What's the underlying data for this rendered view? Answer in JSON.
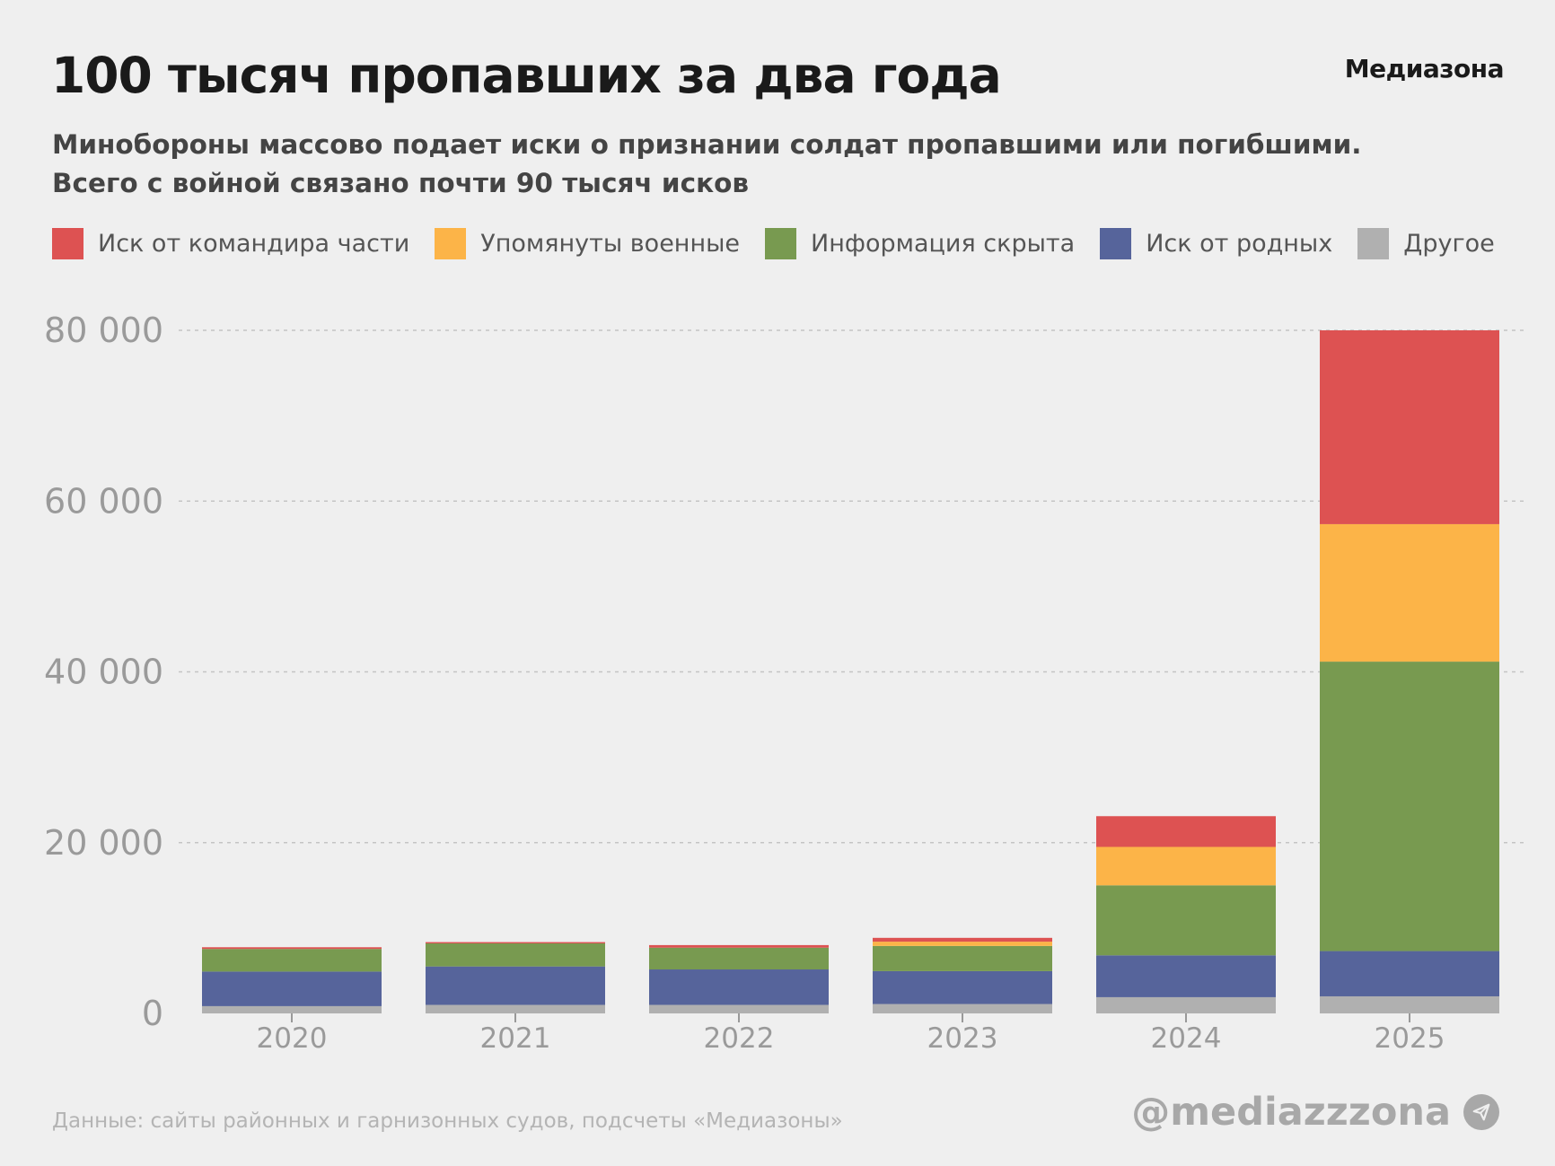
{
  "header": {
    "title": "100 тысяч пропавших за два года",
    "brand": "Медиазона",
    "subtitle_line1": "Минобороны массово подает иски о признании солдат пропавшими или погибшими.",
    "subtitle_line2": "Всего с войной связано почти 90 тысяч исков"
  },
  "footer": {
    "source": "Данные: сайты районных и гарнизонных судов, подсчеты «Медиазоны»",
    "handle": "@mediazzzona",
    "handle_icon": "telegram-icon"
  },
  "chart_data": {
    "type": "bar",
    "stacked": true,
    "title": "100 тысяч пропавших за два года",
    "xlabel": "",
    "ylabel": "",
    "ylim": [
      0,
      80000
    ],
    "yticks": [
      0,
      20000,
      40000,
      60000,
      80000
    ],
    "ytick_labels": [
      "0",
      "20 000",
      "40 000",
      "60 000",
      "80 000"
    ],
    "grid": true,
    "legend": "top",
    "categories": [
      "2020",
      "2021",
      "2022",
      "2023",
      "2024",
      "2025"
    ],
    "series": [
      {
        "name": "Другое",
        "color": "#b0b0b0",
        "values": [
          850,
          1000,
          1000,
          1100,
          1900,
          2000
        ]
      },
      {
        "name": "Иск от родных",
        "color": "#56649b",
        "values": [
          4050,
          4500,
          4150,
          3850,
          4900,
          5300
        ]
      },
      {
        "name": "Информация скрыта",
        "color": "#789a50",
        "values": [
          2650,
          2700,
          2550,
          2950,
          8200,
          33900
        ]
      },
      {
        "name": "Упомянуты военные",
        "color": "#fcb448",
        "values": [
          0,
          0,
          0,
          500,
          4500,
          16100
        ]
      },
      {
        "name": "Иск от командира части",
        "color": "#dd5252",
        "values": [
          200,
          150,
          300,
          450,
          3600,
          22700
        ]
      }
    ],
    "legend_order": [
      4,
      3,
      2,
      1,
      0
    ]
  }
}
